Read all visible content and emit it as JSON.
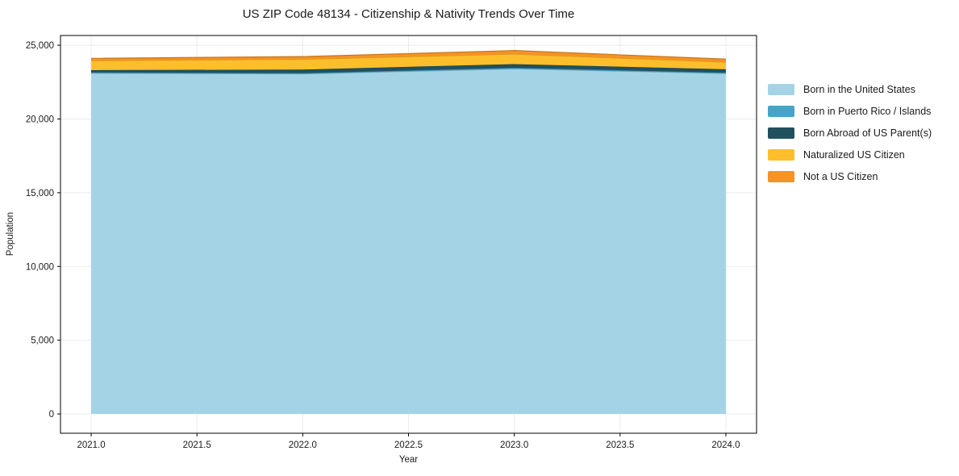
{
  "chart_data": {
    "type": "area",
    "stacked": true,
    "title": "US ZIP Code 48134 - Citizenship & Nativity Trends Over Time",
    "xlabel": "Year",
    "ylabel": "Population",
    "x": [
      2021,
      2022,
      2023,
      2024
    ],
    "series": [
      {
        "name": "Born in the United States",
        "color": "#A5D3E6",
        "values": [
          23100,
          23050,
          23400,
          23080
        ]
      },
      {
        "name": "Born in Puerto Rico / Islands",
        "color": "#45A5C6",
        "values": [
          60,
          60,
          70,
          60
        ]
      },
      {
        "name": "Born Abroad of US Parent(s)",
        "color": "#21505F",
        "values": [
          150,
          240,
          250,
          230
        ]
      },
      {
        "name": "Naturalized US Citizen",
        "color": "#FCBF2B",
        "values": [
          640,
          700,
          680,
          480
        ]
      },
      {
        "name": "Not a US Citizen",
        "color": "#F69322",
        "values": [
          160,
          180,
          240,
          210
        ]
      }
    ],
    "stack_totals": [
      24110,
      24230,
      24640,
      24060
    ],
    "xticks": [
      2021.0,
      2021.5,
      2022.0,
      2022.5,
      2023.0,
      2023.5,
      2024.0
    ],
    "xtick_labels": [
      "2021.0",
      "2021.5",
      "2022.0",
      "2022.5",
      "2023.0",
      "2023.5",
      "2024.0"
    ],
    "yticks": [
      0,
      5000,
      10000,
      15000,
      20000,
      25000
    ],
    "ytick_labels": [
      "0",
      "5,000",
      "10,000",
      "15,000",
      "20,000",
      "25,000"
    ],
    "xlim": [
      2020.855,
      2024.145
    ],
    "ylim": [
      -1310,
      25660
    ],
    "grid": true,
    "grid_color": "#ebebeb",
    "axis_color": "#000000",
    "legend_position": "right"
  }
}
